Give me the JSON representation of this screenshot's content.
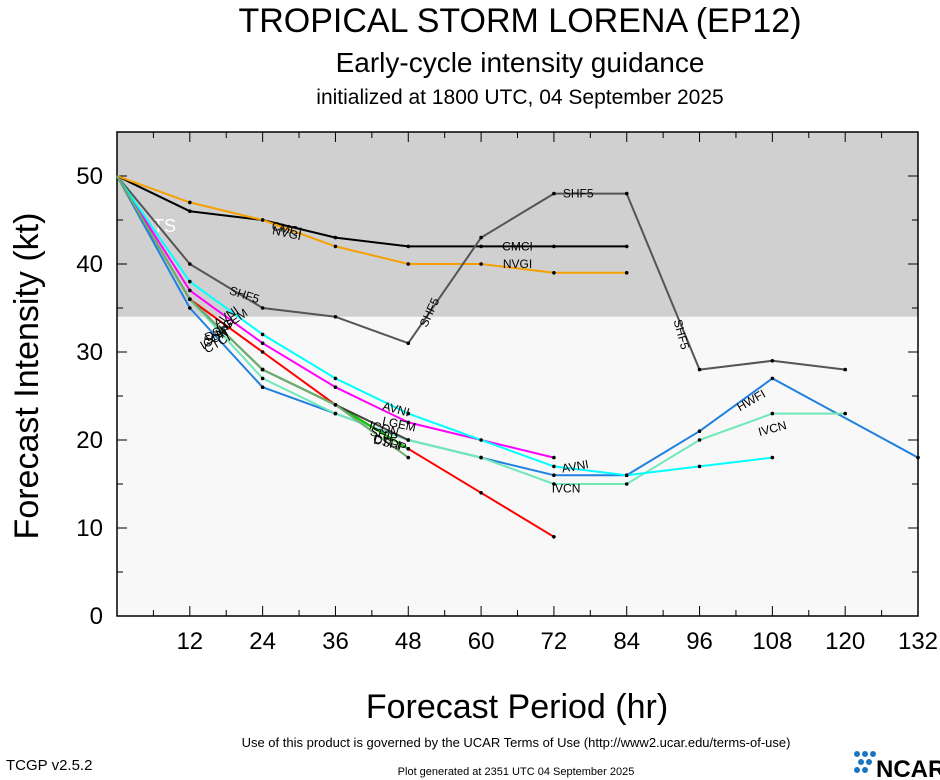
{
  "header": {
    "title": "TROPICAL STORM LORENA (EP12)",
    "subtitle": "Early-cycle intensity guidance",
    "init_line": "initialized at 1800 UTC, 04 September 2025"
  },
  "footer": {
    "terms": "Use of this product is governed by the UCAR Terms of Use (http://www2.ucar.edu/terms-of-use)",
    "version": "TCGP v2.5.2",
    "generated": "Plot generated at 2351 UTC   04 September 2025",
    "logo_text": "NCAR"
  },
  "colors": {
    "ts_band": "#d0d0d0",
    "td_band": "#f8f8f8"
  },
  "chart_data": {
    "type": "line",
    "xlabel": "Forecast Period (hr)",
    "ylabel": "Forecast Intensity (kt)",
    "xlim": [
      0,
      132
    ],
    "ylim": [
      0,
      55
    ],
    "xticks": [
      12,
      24,
      36,
      48,
      60,
      72,
      84,
      96,
      108,
      120,
      132
    ],
    "yticks": [
      0,
      10,
      20,
      30,
      40,
      50
    ],
    "bands": [
      {
        "label": "TS",
        "from": 34,
        "to": 55,
        "color": "#d0d0d0"
      },
      {
        "label": "",
        "from": 0,
        "to": 34,
        "color": "#f8f8f8"
      }
    ],
    "series": [
      {
        "name": "CMCI",
        "color": "#000000",
        "x": [
          0,
          12,
          24,
          36,
          48,
          60,
          72,
          84
        ],
        "y": [
          50,
          46,
          45,
          43,
          42,
          42,
          42,
          42
        ],
        "labels": [
          {
            "text": "CMCI",
            "x": 28,
            "y": 44,
            "angle": 12
          },
          {
            "text": "CMCI",
            "x": 66,
            "y": 42,
            "angle": 0
          }
        ]
      },
      {
        "name": "NVGI",
        "color": "#f5a000",
        "x": [
          0,
          12,
          24,
          36,
          48,
          60,
          72,
          84
        ],
        "y": [
          50,
          47,
          45,
          42,
          40,
          40,
          39,
          39
        ],
        "labels": [
          {
            "text": "NVGI",
            "x": 28,
            "y": 43.5,
            "angle": 12
          },
          {
            "text": "NVGI",
            "x": 66,
            "y": 40,
            "angle": 0
          }
        ]
      },
      {
        "name": "SHF5",
        "color": "#555555",
        "x": [
          0,
          12,
          24,
          36,
          48,
          60,
          72,
          84,
          96,
          108,
          120
        ],
        "y": [
          50,
          40,
          35,
          34,
          31,
          43,
          48,
          48,
          28,
          29,
          28
        ],
        "labels": [
          {
            "text": "SHF5",
            "x": 21,
            "y": 36.5,
            "angle": 18
          },
          {
            "text": "SHF5",
            "x": 51.5,
            "y": 34.5,
            "angle": -65
          },
          {
            "text": "SHF5",
            "x": 76,
            "y": 48,
            "angle": 0
          },
          {
            "text": "SHF5",
            "x": 93,
            "y": 32,
            "angle": 75
          }
        ]
      },
      {
        "name": "HWFI",
        "color": "#2080e0",
        "x": [
          0,
          12,
          24,
          36,
          48,
          60,
          72,
          84,
          96,
          108,
          132
        ],
        "y": [
          50,
          35,
          26,
          23,
          20,
          18,
          16,
          16,
          21,
          27,
          18
        ],
        "labels": [
          {
            "text": "HWFI",
            "x": 104.5,
            "y": 24.5,
            "angle": -30
          }
        ]
      },
      {
        "name": "IVCN",
        "color": "#70e8b8",
        "x": [
          0,
          12,
          24,
          36,
          48,
          60,
          72,
          84,
          96,
          108,
          120
        ],
        "y": [
          50,
          36,
          27,
          23,
          20,
          18,
          15,
          15,
          20,
          23,
          23
        ],
        "labels": [
          {
            "text": "IVCN",
            "x": 74,
            "y": 14.5,
            "angle": 0
          },
          {
            "text": "IVCN",
            "x": 108,
            "y": 21.3,
            "angle": -15
          }
        ]
      },
      {
        "name": "AVNI",
        "color": "#ff00ff",
        "x": [
          0,
          12,
          24,
          36,
          48,
          72
        ],
        "y": [
          50,
          37,
          31,
          26,
          22,
          18
        ],
        "labels": [
          {
            "text": "AVNI",
            "x": 46,
            "y": 23.5,
            "angle": 15
          },
          {
            "text": "AVNI",
            "x": 75.5,
            "y": 17,
            "angle": -10
          },
          {
            "text": "AVNI",
            "x": 18,
            "y": 34,
            "angle": -35
          }
        ]
      },
      {
        "name": "LGEM",
        "color": "#00ffff",
        "x": [
          0,
          12,
          24,
          36,
          48,
          60,
          72,
          84,
          96,
          108
        ],
        "y": [
          50,
          38,
          32,
          27,
          23,
          20,
          17,
          16,
          17,
          18
        ],
        "labels": [
          {
            "text": "LGEM",
            "x": 46.5,
            "y": 21.8,
            "angle": 12
          },
          {
            "text": "LGEM",
            "x": 19,
            "y": 33.5,
            "angle": -35
          }
        ]
      },
      {
        "name": "DSHP",
        "color": "#ff0000",
        "x": [
          0,
          12,
          24,
          36,
          48,
          60,
          72
        ],
        "y": [
          50,
          36,
          30,
          24,
          19,
          14,
          9
        ],
        "labels": [
          {
            "text": "DSHP",
            "x": 45,
            "y": 19.6,
            "angle": 15
          },
          {
            "text": "DSHP",
            "x": 17,
            "y": 32.5,
            "angle": -30
          }
        ]
      },
      {
        "name": "SHIP",
        "color": "#00cc00",
        "x": [
          0,
          12,
          24,
          36,
          48
        ],
        "y": [
          50,
          36,
          28,
          24,
          19
        ],
        "labels": [
          {
            "text": "SHIP",
            "x": 44,
            "y": 20.6,
            "angle": 15
          },
          {
            "text": "SHIP",
            "x": 16.5,
            "y": 32,
            "angle": -30
          }
        ]
      },
      {
        "name": "ICON",
        "color": "#444444",
        "x": [
          0,
          12,
          24,
          36,
          48
        ],
        "y": [
          50,
          36,
          28,
          24,
          20
        ],
        "labels": [
          {
            "text": "ICON",
            "x": 44,
            "y": 21.3,
            "angle": 15
          },
          {
            "text": "ICON",
            "x": 16,
            "y": 31.5,
            "angle": -30
          }
        ]
      },
      {
        "name": "CTCI",
        "color": "#6fae6f",
        "x": [
          0,
          12,
          24,
          36,
          48
        ],
        "y": [
          50,
          36,
          28,
          24,
          18
        ],
        "labels": [
          {
            "text": "CTCI",
            "x": 44.5,
            "y": 19.8,
            "angle": 15
          },
          {
            "text": "CTCI",
            "x": 16.5,
            "y": 31,
            "angle": -30
          }
        ]
      }
    ]
  }
}
